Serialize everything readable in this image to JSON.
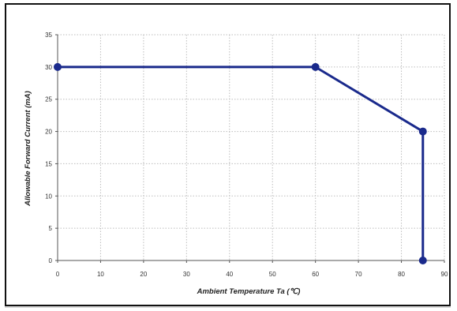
{
  "chart_data": {
    "type": "line",
    "title": "",
    "xlabel": "Ambient Temperature Ta (℃)",
    "ylabel": "Allowable Forward Current (mA)",
    "xlim": [
      0,
      90
    ],
    "ylim": [
      0,
      35
    ],
    "xticks": [
      "0",
      "10",
      "20",
      "30",
      "40",
      "50",
      "60",
      "70",
      "80",
      "90"
    ],
    "yticks": [
      "0",
      "5",
      "10",
      "15",
      "20",
      "25",
      "30",
      "35"
    ],
    "grid": true,
    "legend": "none",
    "series": [
      {
        "x": [
          0,
          60,
          85,
          85
        ],
        "y": [
          30,
          30,
          20,
          0
        ]
      }
    ],
    "colors": {
      "line": "#1a2a8c",
      "marker": "#1a2a8c",
      "grid": "#bdbdbd",
      "axis": "#555555"
    }
  }
}
